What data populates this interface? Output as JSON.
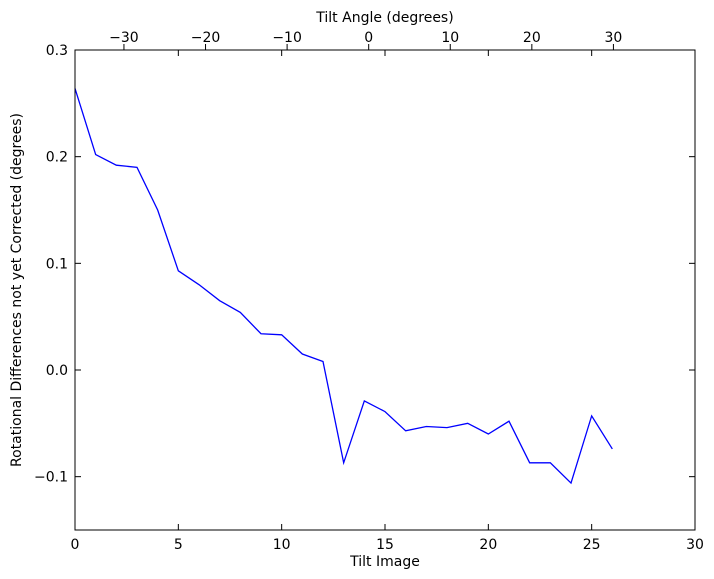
{
  "chart_data": {
    "type": "line",
    "title": "",
    "xlabel": "Tilt Image",
    "ylabel": "Rotational Differences not yet Corrected (degrees)",
    "x2label": "Tilt Angle (degrees)",
    "xlim": [
      0,
      30
    ],
    "ylim": [
      -0.15,
      0.3
    ],
    "x2lim": [
      -36,
      40
    ],
    "xticks": [
      0,
      5,
      10,
      15,
      20,
      25,
      30
    ],
    "xtick_labels": [
      "0",
      "5",
      "10",
      "15",
      "20",
      "25",
      "30"
    ],
    "yticks": [
      -0.1,
      0.0,
      0.1,
      0.2,
      0.3
    ],
    "ytick_labels": [
      "−0.1",
      "0.0",
      "0.1",
      "0.2",
      "0.3"
    ],
    "x2ticks": [
      -30,
      -20,
      -10,
      0,
      10,
      20,
      30
    ],
    "x2tick_labels": [
      "−30",
      "−20",
      "−10",
      "0",
      "10",
      "20",
      "30"
    ],
    "grid": false,
    "series": [
      {
        "color": "#0000ff",
        "x": [
          0,
          1,
          2,
          3,
          4,
          5,
          6,
          7,
          8,
          9,
          10,
          11,
          12,
          13,
          14,
          15,
          16,
          17,
          18,
          19,
          20,
          21,
          22,
          23,
          24,
          25,
          26
        ],
        "y": [
          0.264,
          0.202,
          0.192,
          0.19,
          0.15,
          0.093,
          0.08,
          0.065,
          0.054,
          0.034,
          0.033,
          0.015,
          0.008,
          -0.087,
          -0.029,
          -0.039,
          -0.057,
          -0.053,
          -0.054,
          -0.05,
          -0.06,
          -0.048,
          -0.087,
          -0.087,
          -0.106,
          -0.043,
          -0.074
        ]
      }
    ]
  }
}
